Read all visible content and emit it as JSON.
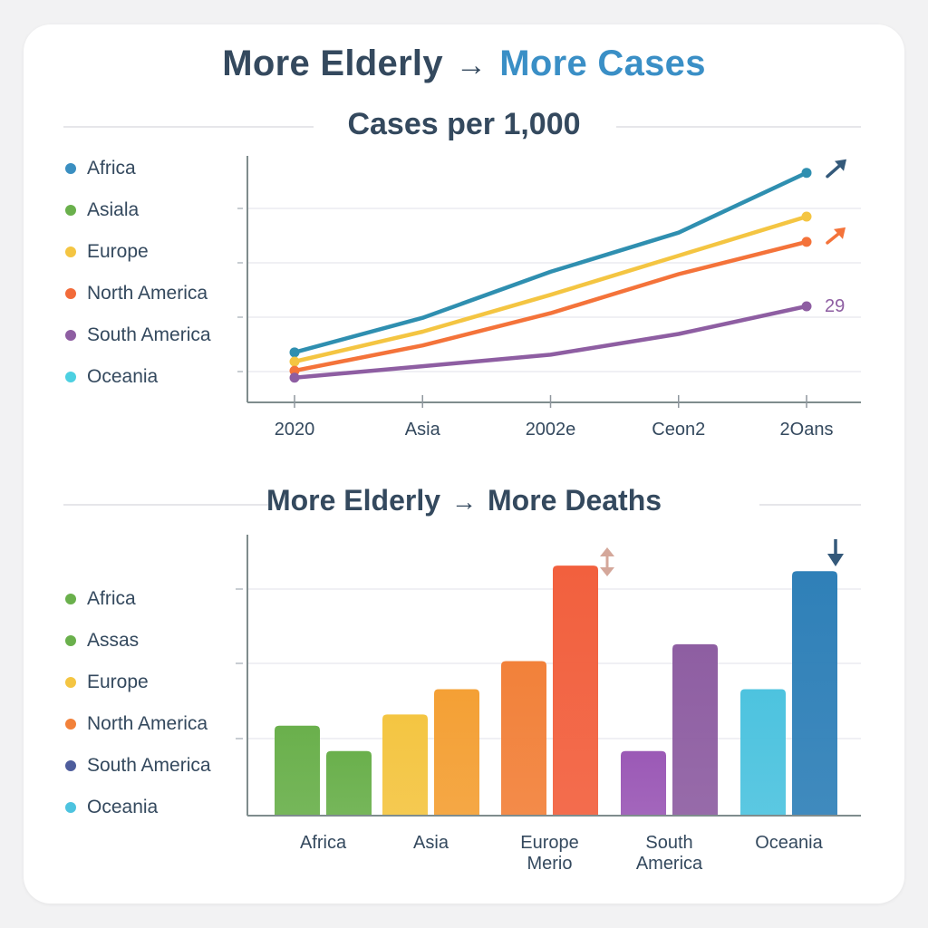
{
  "header": {
    "title_left": "More Elderly",
    "title_arrow": "→",
    "title_right": "More Cases"
  },
  "colors": {
    "africa": "#3a8fc1",
    "asia": "#6ab04c",
    "europe": "#f4c542",
    "north_america": "#f26b3a",
    "south_america": "#8e5ea2",
    "oceania": "#4dd0e1",
    "south_america_bars": "#4e5d9c",
    "axis": "#7f8c8d",
    "grid": "#ececf0",
    "text": "#34495e"
  },
  "line_legend": [
    {
      "label": "Africa",
      "color": "#3a8fc1"
    },
    {
      "label": "Asiala",
      "color": "#6ab04c"
    },
    {
      "label": "Europe",
      "color": "#f4c542"
    },
    {
      "label": "North America",
      "color": "#f26b3a"
    },
    {
      "label": "South America",
      "color": "#8e5ea2"
    },
    {
      "label": "Oceania",
      "color": "#4dd0e1"
    }
  ],
  "bar_legend": [
    {
      "label": "Africa",
      "color": "#6ab04c"
    },
    {
      "label": "Assas",
      "color": "#6ab04c"
    },
    {
      "label": "Europe",
      "color": "#f4c542"
    },
    {
      "label": "North America",
      "color": "#f2813a"
    },
    {
      "label": "South America",
      "color": "#4e5d9c"
    },
    {
      "label": "Oceania",
      "color": "#4dc3df"
    }
  ],
  "chart_data": [
    {
      "type": "line",
      "title": "Cases per 1,000",
      "x": [
        "2020",
        "Asia",
        "2002e",
        "Ceon2",
        "2Oans"
      ],
      "ylim": [
        0,
        100
      ],
      "series": [
        {
          "name": "Africa",
          "color": "#2f8fb0",
          "values": [
            17,
            32,
            52,
            69,
            95
          ]
        },
        {
          "name": "Europe",
          "color": "#f4c542",
          "values": [
            13,
            26,
            42,
            59,
            76
          ]
        },
        {
          "name": "North America",
          "color": "#f4733a",
          "values": [
            9,
            20,
            34,
            51,
            65
          ]
        },
        {
          "name": "South America",
          "color": "#8e5ea2",
          "values": [
            6,
            11,
            16,
            25,
            37
          ]
        }
      ],
      "annotations": [
        {
          "series": "South America",
          "text": "29",
          "color": "#8e5ea2"
        }
      ]
    },
    {
      "type": "bar",
      "title": "More Elderly → More Deaths",
      "title_left": "More Elderly",
      "title_arrow": "→",
      "title_right": "More Deaths",
      "ylim": [
        0,
        100
      ],
      "groups": [
        {
          "label": "Africa",
          "bars": [
            {
              "value": 32,
              "color": "#6ab04c"
            },
            {
              "value": 23,
              "color": "#6ab04c"
            }
          ]
        },
        {
          "label": "Asia",
          "bars": [
            {
              "value": 36,
              "color": "#f4c542"
            },
            {
              "value": 45,
              "color": "#f4a035"
            }
          ]
        },
        {
          "label": "Europe\nMerio",
          "bars": [
            {
              "value": 55,
              "color": "#f2813a"
            },
            {
              "value": 89,
              "color": "#f2603e"
            }
          ]
        },
        {
          "label": "South\nAmerica",
          "bars": [
            {
              "value": 23,
              "color": "#9b59b6"
            },
            {
              "value": 61,
              "color": "#8e5ea2"
            }
          ]
        },
        {
          "label": "Oceania",
          "bars": [
            {
              "value": 45,
              "color": "#4dc3df"
            },
            {
              "value": 87,
              "color": "#2f80b8"
            }
          ]
        }
      ]
    }
  ]
}
